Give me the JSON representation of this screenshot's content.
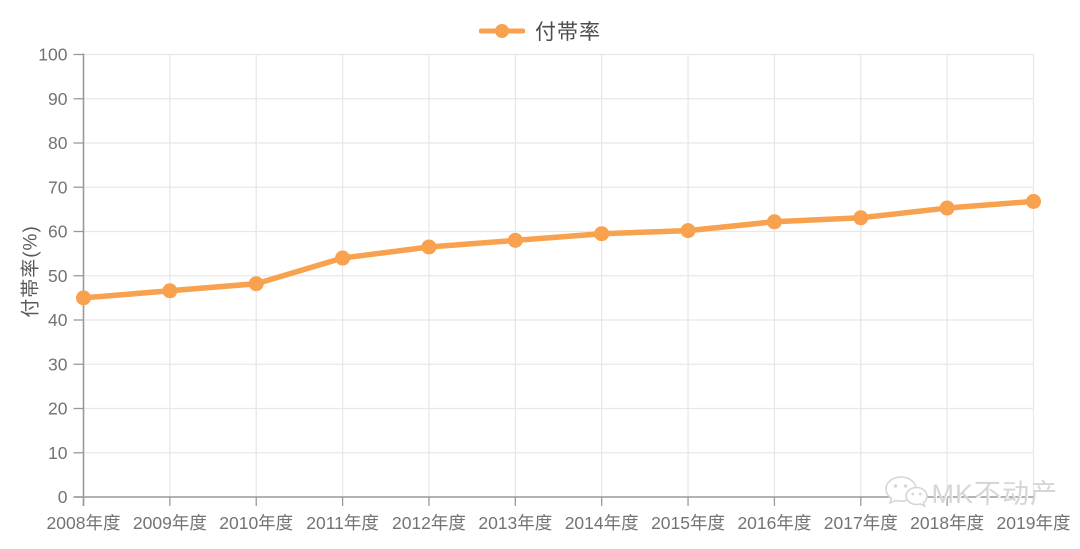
{
  "chart_data": {
    "type": "line",
    "categories": [
      "2008年度",
      "2009年度",
      "2010年度",
      "2011年度",
      "2012年度",
      "2013年度",
      "2014年度",
      "2015年度",
      "2016年度",
      "2017年度",
      "2018年度",
      "2019年度"
    ],
    "series": [
      {
        "name": "付帯率",
        "values": [
          45.0,
          46.6,
          48.2,
          54.0,
          56.5,
          58.0,
          59.5,
          60.2,
          62.2,
          63.1,
          65.3,
          66.8
        ],
        "color": "#F8A14E"
      }
    ],
    "title": "",
    "xlabel": "",
    "ylabel": "付帯率(%)",
    "ylim": [
      0,
      100
    ],
    "y_ticks": [
      0,
      10,
      20,
      30,
      40,
      50,
      60,
      70,
      80,
      90,
      100
    ],
    "grid": "on",
    "legend_position": "top"
  },
  "colors": {
    "series": "#F8A14E",
    "grid_line": "#e8e8e8",
    "axis_line": "#9a9a9a",
    "tick_label": "#737373",
    "legend_text": "#4d4d4d",
    "y_title": "#595959",
    "watermark": "#d6d6d6"
  },
  "watermark": {
    "text": "MK不动产",
    "icon": "wechat-icon"
  }
}
